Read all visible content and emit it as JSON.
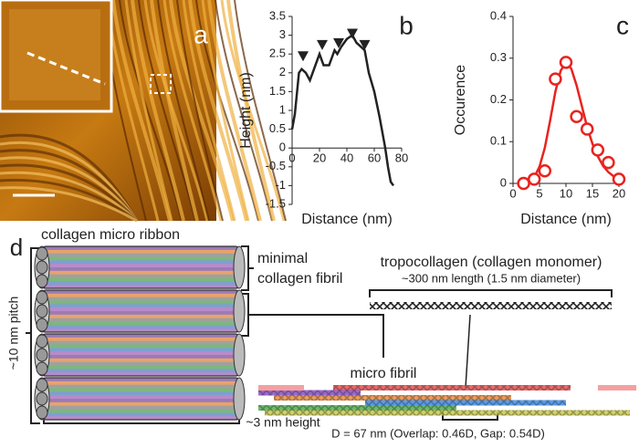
{
  "chart_data": [
    {
      "type": "line",
      "panel": "b",
      "xlabel": "Distance (nm)",
      "ylabel": "Height (nm)",
      "color": "#222222",
      "x": [
        0,
        2,
        5,
        7,
        10,
        13,
        17,
        20,
        23,
        27,
        31,
        33,
        36,
        40,
        44,
        47,
        50,
        53,
        56,
        60,
        64,
        68,
        70,
        72,
        74
      ],
      "values": [
        0.5,
        0.9,
        2.0,
        2.1,
        2.0,
        1.8,
        2.2,
        2.5,
        2.2,
        2.2,
        2.6,
        2.5,
        2.7,
        2.9,
        3.0,
        2.8,
        2.7,
        2.6,
        2.0,
        1.5,
        0.8,
        0.0,
        -0.5,
        -0.9,
        -1.0
      ],
      "markers": {
        "x": [
          8,
          22,
          34,
          44,
          53
        ],
        "y": [
          2.45,
          2.75,
          2.8,
          3.05,
          2.75
        ]
      },
      "xlim": [
        0,
        80
      ],
      "xticks": [
        0,
        20,
        40,
        60,
        80
      ],
      "ylim": [
        -1.5,
        3.5
      ],
      "yticks": [
        -1.5,
        -1,
        -0.5,
        0,
        0.5,
        1,
        1.5,
        2,
        2.5,
        3,
        3.5
      ]
    },
    {
      "type": "scatter",
      "panel": "c",
      "xlabel": "Distance (nm)",
      "ylabel": "Occurence",
      "color": "#e8231f",
      "x": [
        2,
        4,
        6,
        8,
        10,
        12,
        14,
        16,
        18,
        20
      ],
      "values": [
        0,
        0.01,
        0.03,
        0.25,
        0.29,
        0.16,
        0.13,
        0.08,
        0.05,
        0.01
      ],
      "fit": {
        "x": [
          2,
          3,
          4,
          5,
          6,
          7,
          8,
          9,
          10,
          11,
          12,
          13,
          14,
          15,
          16,
          17,
          18,
          19,
          20
        ],
        "values": [
          0,
          0.005,
          0.015,
          0.04,
          0.085,
          0.15,
          0.22,
          0.27,
          0.29,
          0.275,
          0.235,
          0.185,
          0.135,
          0.095,
          0.065,
          0.042,
          0.027,
          0.017,
          0.01
        ]
      },
      "xlim": [
        0,
        20
      ],
      "xticks": [
        0,
        5,
        10,
        15,
        20
      ],
      "ylim": [
        0,
        0.4
      ],
      "yticks": [
        0,
        0.1,
        0.2,
        0.3,
        0.4
      ]
    }
  ],
  "panel_a": {
    "label": "a"
  },
  "panel_d": {
    "label": "d",
    "ribbon": "collagen micro ribbon",
    "fibril_line1": "minimal",
    "fibril_line2": "collagen fibril",
    "pitch": "~10 nm pitch",
    "height": "~3 nm height",
    "microfibril": "micro fibril",
    "monomer": "tropocollagen (collagen monomer)",
    "monomer_size": "~300 nm length (1.5 nm diameter)",
    "period": "D = 67 nm (Overlap: 0.46D, Gap: 0.54D)"
  }
}
